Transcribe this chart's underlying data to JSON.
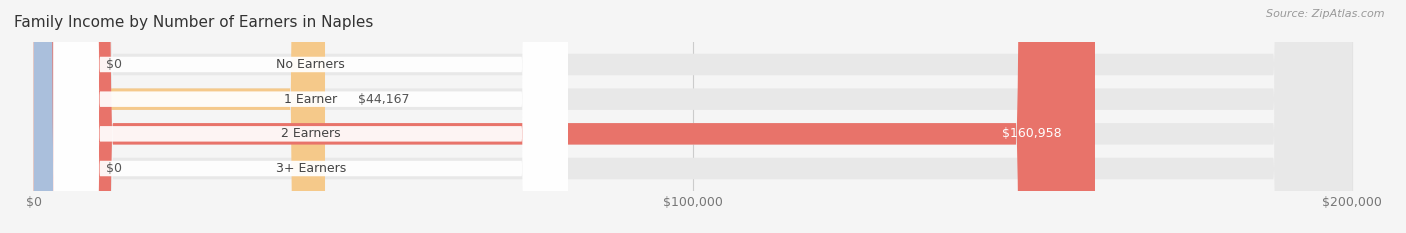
{
  "title": "Family Income by Number of Earners in Naples",
  "source": "Source: ZipAtlas.com",
  "categories": [
    "No Earners",
    "1 Earner",
    "2 Earners",
    "3+ Earners"
  ],
  "values": [
    0,
    44167,
    160958,
    0
  ],
  "max_value": 200000,
  "bar_colors": [
    "#f2a0b4",
    "#f5c98a",
    "#e8736a",
    "#aabfdc"
  ],
  "bg_color": "#f5f5f5",
  "bar_bg_color": "#e8e8e8",
  "value_labels": [
    "$0",
    "$44,167",
    "$160,958",
    "$0"
  ],
  "value_label_inside": [
    false,
    false,
    true,
    false
  ],
  "x_ticks": [
    0,
    100000,
    200000
  ],
  "x_tick_labels": [
    "$0",
    "$100,000",
    "$200,000"
  ],
  "title_fontsize": 11,
  "label_fontsize": 9,
  "value_fontsize": 9,
  "tick_fontsize": 9
}
